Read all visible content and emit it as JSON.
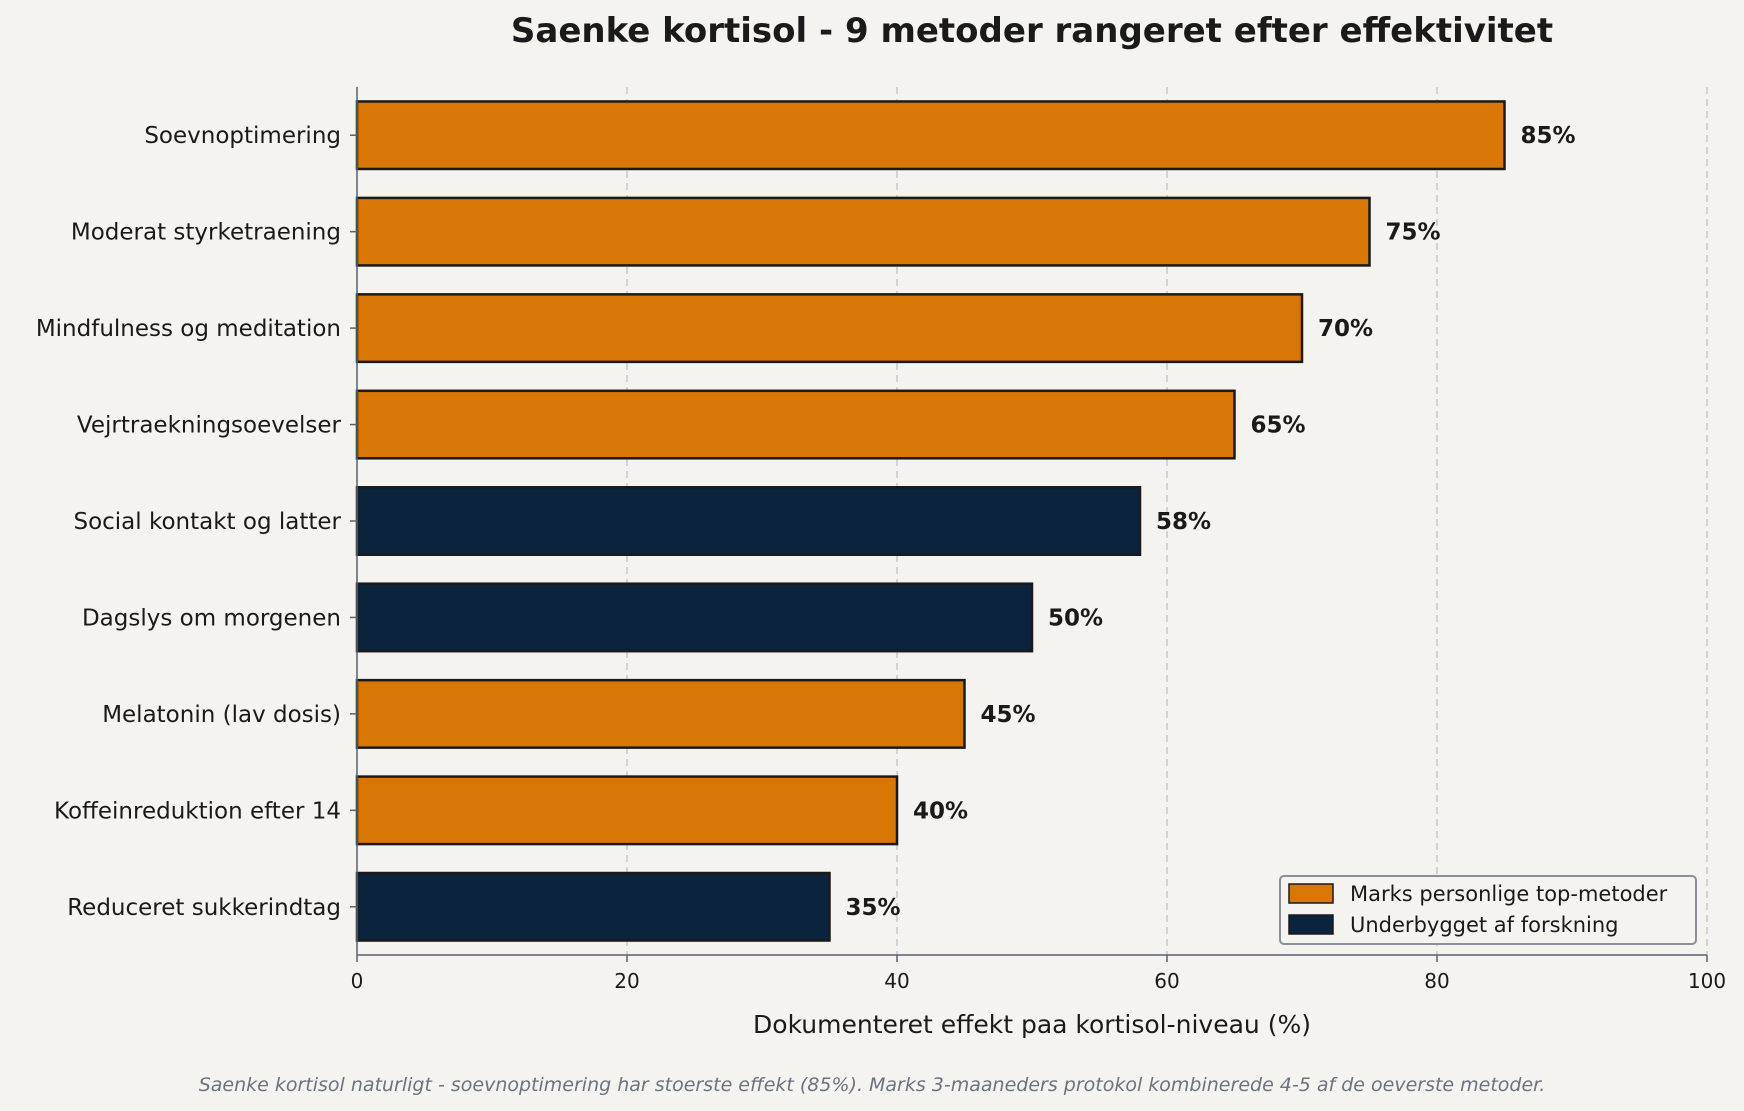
{
  "chart_data": {
    "type": "bar",
    "orientation": "horizontal",
    "title": "Saenke kortisol - 9 metoder rangeret efter effektivitet",
    "xlabel": "Dokumenteret effekt paa kortisol-niveau (%)",
    "ylabel": "",
    "xlim": [
      0,
      100
    ],
    "x_ticks": [
      0,
      20,
      40,
      60,
      80,
      100
    ],
    "grid": "vertical dashed",
    "legend_position": "lower-right",
    "value_suffix": "%",
    "categories": [
      "Soevnoptimering",
      "Moderat styrketraening",
      "Mindfulness og meditation",
      "Vejrtraekningsoevelser",
      "Social kontakt og latter",
      "Dagslys om morgenen",
      "Melatonin (lav dosis)",
      "Koffeinreduktion efter 14",
      "Reduceret sukkerindtag"
    ],
    "values": [
      85,
      75,
      70,
      65,
      58,
      50,
      45,
      40,
      35
    ],
    "groups": [
      "personal",
      "personal",
      "personal",
      "personal",
      "research",
      "research",
      "personal",
      "personal",
      "research"
    ],
    "legend": [
      {
        "key": "personal",
        "label": "Marks personlige top-metoder",
        "color": "#d97706"
      },
      {
        "key": "research",
        "label": "Underbygget af forskning",
        "color": "#0c233d"
      }
    ],
    "caption": "Saenke kortisol naturligt - soevnoptimering har stoerste effekt (85%). Marks 3-maaneders protokol kombinerede 4-5 af de oeverste metoder."
  },
  "colors": {
    "background": "#f5f3f0",
    "bar_edge": "#1a1a1a",
    "grid": "#c8c8c8",
    "axis": "#5a6270",
    "caption": "#6b7280"
  }
}
